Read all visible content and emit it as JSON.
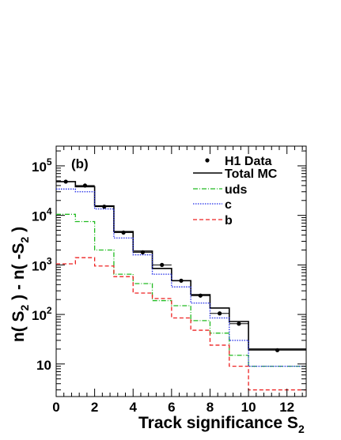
{
  "chart_data": {
    "type": "histogram",
    "panel_label": "(b)",
    "xlabel_main": "Track significance S",
    "xlabel_sub": "2",
    "ylabel_parts": [
      "n( S",
      "2",
      " ) - n( -S",
      "2",
      " )"
    ],
    "ylog": true,
    "xlim": [
      0,
      13
    ],
    "ylim": [
      2.2,
      250000
    ],
    "bin_edges": [
      0,
      1,
      2,
      3,
      4,
      5,
      6,
      7,
      8,
      9,
      10,
      13
    ],
    "x_ticks": [
      0,
      2,
      4,
      6,
      8,
      10,
      12
    ],
    "x_tick_labels": [
      "0",
      "2",
      "4",
      "6",
      "8",
      "10",
      "12"
    ],
    "y_ticks": [
      {
        "value": 10,
        "base": "10",
        "exp": ""
      },
      {
        "value": 100,
        "base": "10",
        "exp": "2"
      },
      {
        "value": 1000,
        "base": "10",
        "exp": "3"
      },
      {
        "value": 10000,
        "base": "10",
        "exp": "4"
      },
      {
        "value": 100000,
        "base": "10",
        "exp": "5"
      }
    ],
    "series": [
      {
        "name": "Total MC",
        "style": "solid",
        "color": "#000000",
        "values": [
          48000,
          38000,
          15500,
          4700,
          1900,
          850,
          480,
          250,
          135,
          72,
          20
        ]
      },
      {
        "name": "uds",
        "style": "dashdot",
        "color": "#22bb22",
        "values": [
          10500,
          7500,
          2000,
          650,
          420,
          190,
          150,
          75,
          42,
          15,
          9
        ]
      },
      {
        "name": "c",
        "style": "dotted",
        "color": "#1f2ae8",
        "values": [
          34000,
          30000,
          13500,
          3500,
          1600,
          650,
          360,
          170,
          85,
          30,
          9
        ]
      },
      {
        "name": "b",
        "style": "dashed",
        "color": "#ee2222",
        "values": [
          1050,
          1400,
          950,
          580,
          270,
          210,
          85,
          48,
          24,
          9,
          3
        ]
      }
    ],
    "data": {
      "name": "H1 Data",
      "x": [
        0.5,
        1.5,
        2.5,
        3.5,
        4.5,
        5.5,
        6.5,
        7.5,
        8.5,
        9.5,
        11.5
      ],
      "y": [
        48000,
        40000,
        15000,
        4500,
        1800,
        1000,
        480,
        240,
        105,
        65,
        19
      ],
      "xerr": [
        0.5,
        0.5,
        0.5,
        0.5,
        0.5,
        0.5,
        0.5,
        0.5,
        0.5,
        0.5,
        1.5
      ]
    },
    "legend": [
      "H1 Data",
      "Total MC",
      "uds",
      "c",
      "b"
    ]
  }
}
